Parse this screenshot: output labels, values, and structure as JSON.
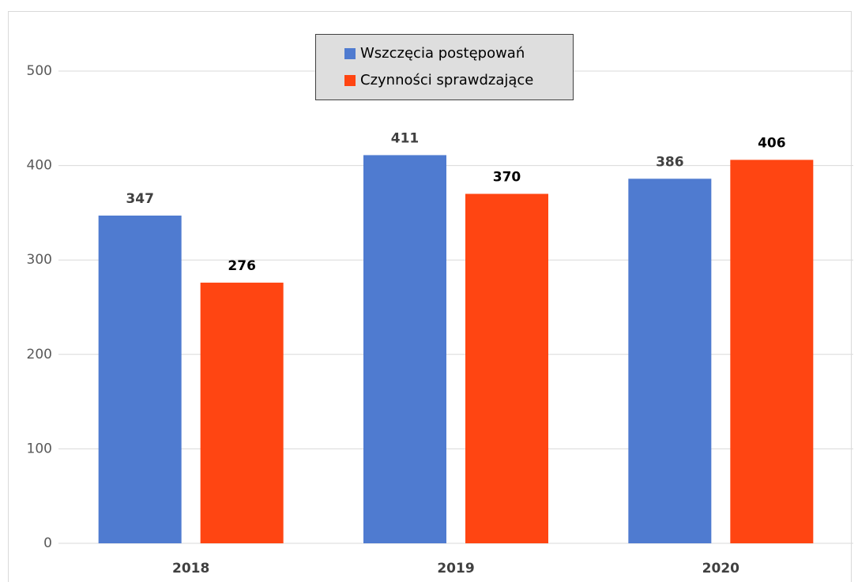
{
  "chart_data": {
    "type": "bar",
    "categories": [
      "2018",
      "2019",
      "2020"
    ],
    "series": [
      {
        "name": "Wszczęcia postępowań",
        "color": "#4f7bd0",
        "values": [
          347,
          411,
          386
        ]
      },
      {
        "name": "Czynności sprawdzające",
        "color": "#ff4512",
        "values": [
          276,
          370,
          406
        ]
      }
    ],
    "ylim": [
      0,
      500
    ],
    "yticks": [
      0,
      100,
      200,
      300,
      400,
      500
    ],
    "grid": true,
    "legend": "top"
  }
}
